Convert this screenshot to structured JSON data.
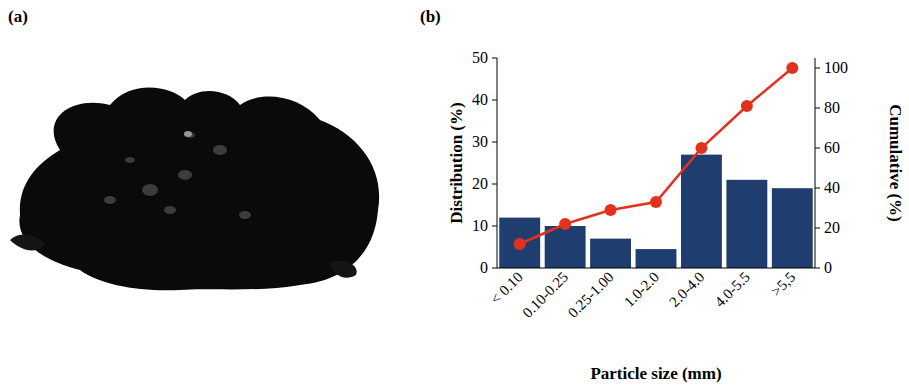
{
  "figure": {
    "labels": [
      "(a)",
      "(b)"
    ]
  },
  "chart_data": {
    "type": "bar",
    "xlabel": "Particle size (mm)",
    "ylabel": "Distribution (%)",
    "y2label": "Cumulative (%)",
    "categories": [
      "< 0.10",
      "0.10-0.25",
      "0.25-1.00",
      "1.0-2.0",
      "2.0-4.0",
      "4.0-5.5",
      ">5,5"
    ],
    "series": [
      {
        "type": "bar",
        "color": "#1f3d6e",
        "values": [
          12,
          10,
          7,
          4.5,
          27,
          21,
          19
        ]
      },
      {
        "type": "line",
        "axis": "y2",
        "color": "#e2321d",
        "marker": "circle",
        "values": [
          12,
          22,
          29,
          33,
          60,
          81,
          100
        ]
      }
    ],
    "ylim": [
      0,
      50
    ],
    "yticks": [
      0,
      10,
      20,
      30,
      40,
      50
    ],
    "y2lim": [
      0,
      105
    ],
    "y2ticks": [
      0,
      20,
      40,
      60,
      80,
      100
    ],
    "grid": false
  }
}
